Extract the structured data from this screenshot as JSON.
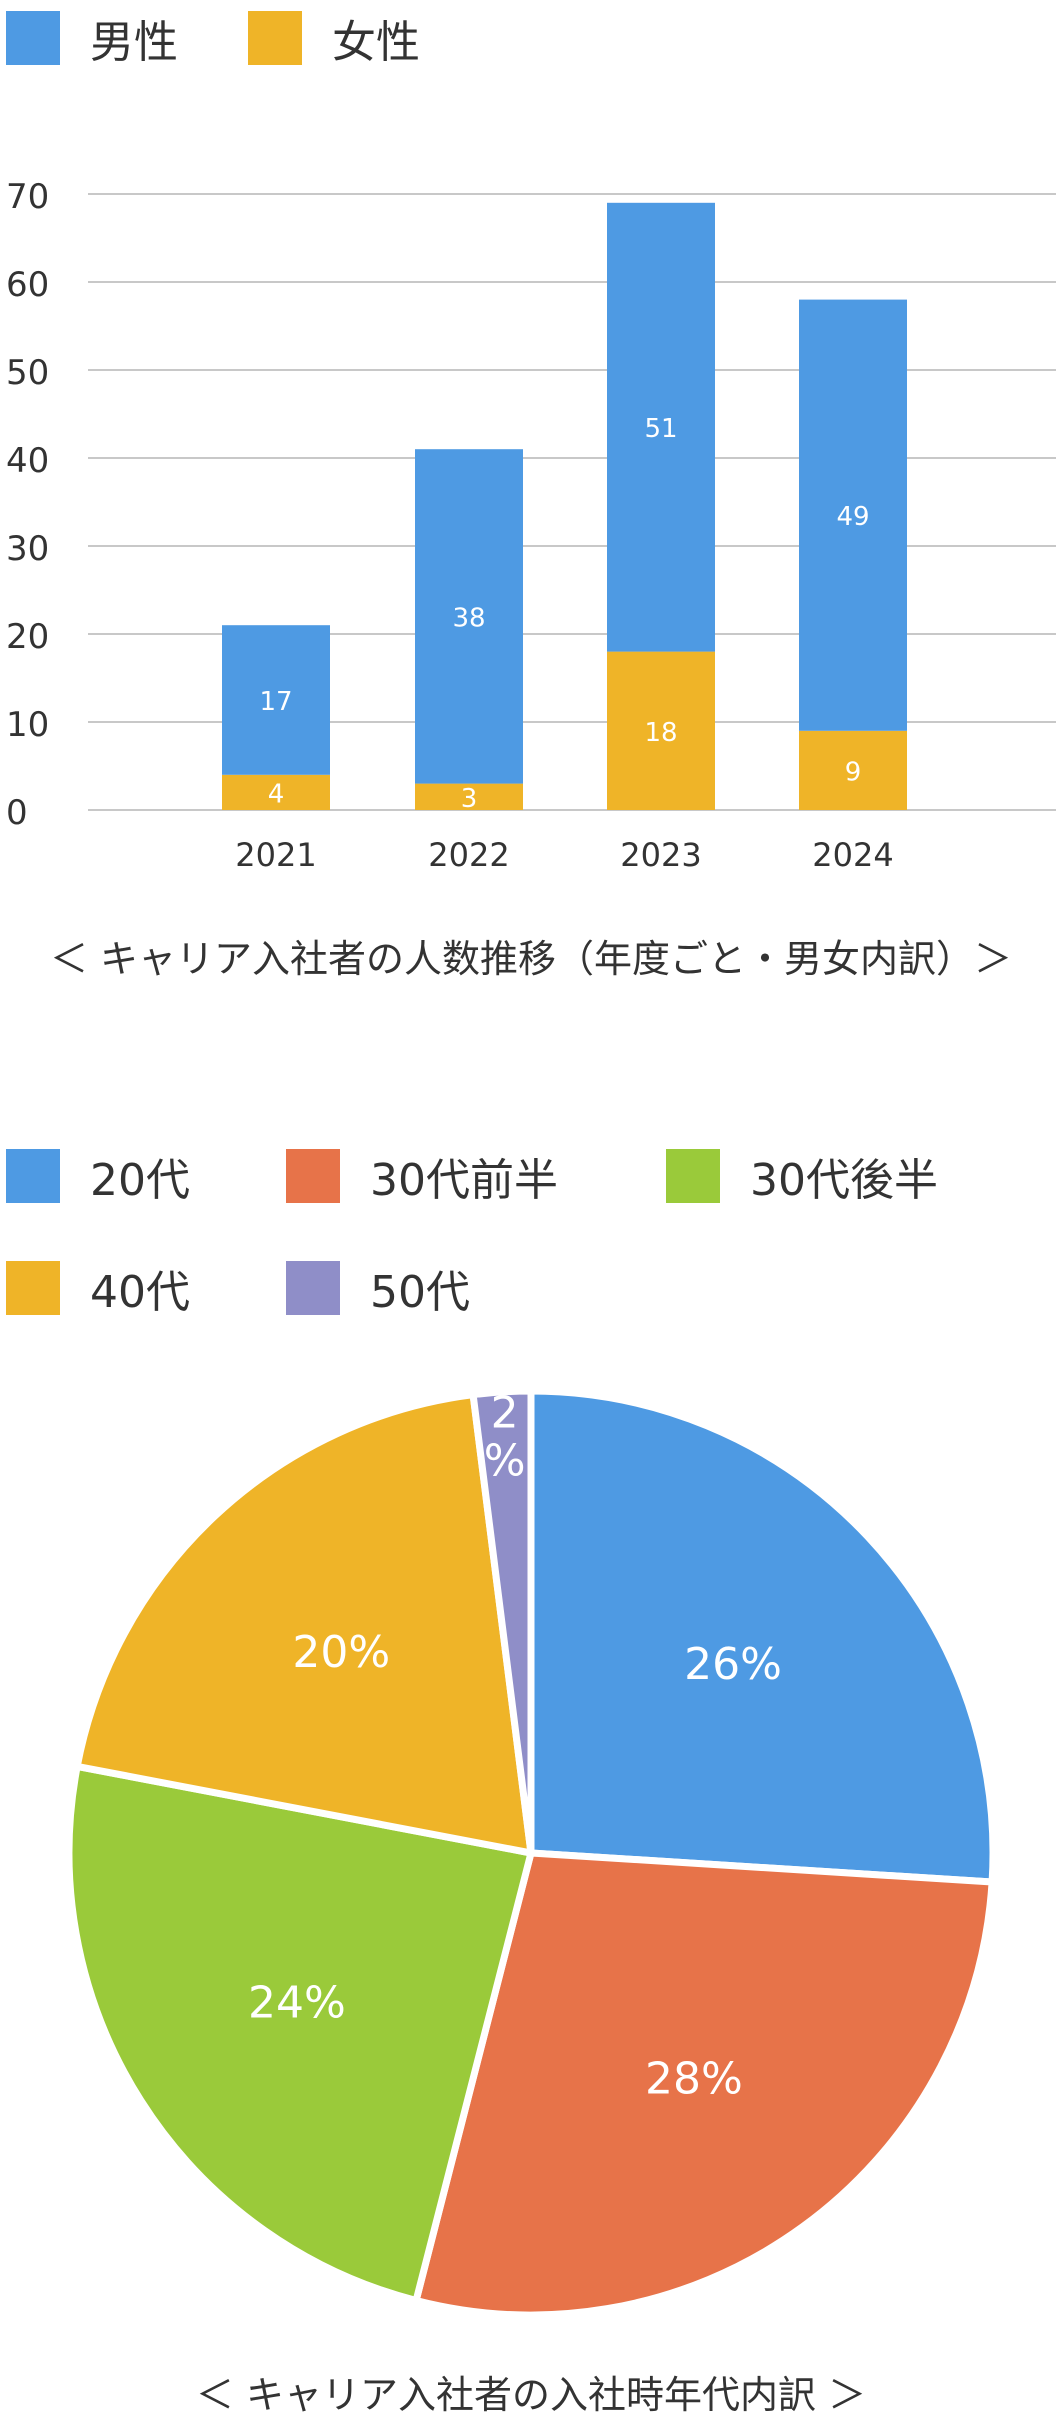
{
  "charts": [
    {
      "legend": [
        {
          "label": "男性",
          "color": "#4e9ae3"
        },
        {
          "label": "女性",
          "color": "#efb428"
        }
      ],
      "caption": "＜ キャリア入社者の人数推移（年度ごと・男女内訳）＞"
    },
    {
      "legend": [
        {
          "label": "20代",
          "color": "#4e9ae3"
        },
        {
          "label": "30代前半",
          "color": "#e77349"
        },
        {
          "label": "30代後半",
          "color": "#9aca3a"
        },
        {
          "label": "40代",
          "color": "#efb428"
        },
        {
          "label": "50代",
          "color": "#8f8ec8"
        }
      ],
      "caption": "＜ キャリア入社者の入社時年代内訳 ＞"
    }
  ],
  "chart_data": [
    {
      "type": "bar",
      "stacked": true,
      "title": "",
      "xlabel": "",
      "ylabel": "",
      "categories": [
        "2021",
        "2022",
        "2023",
        "2024"
      ],
      "ylim": [
        0,
        70
      ],
      "yticks": [
        0,
        10,
        20,
        30,
        40,
        50,
        60,
        70
      ],
      "grid": true,
      "legend_position": "top-left",
      "series": [
        {
          "name": "女性",
          "color": "#efb428",
          "values": [
            4,
            3,
            18,
            9
          ]
        },
        {
          "name": "男性",
          "color": "#4e9ae3",
          "values": [
            17,
            38,
            51,
            49
          ]
        }
      ]
    },
    {
      "type": "pie",
      "title": "",
      "legend_position": "top-left",
      "slices": [
        {
          "label": "20代",
          "value": 26,
          "display": "26%",
          "color": "#4e9ae3"
        },
        {
          "label": "30代前半",
          "value": 28,
          "display": "28%",
          "color": "#e77349"
        },
        {
          "label": "30代後半",
          "value": 24,
          "display": "24%",
          "color": "#9aca3a"
        },
        {
          "label": "40代",
          "value": 20,
          "display": "20%",
          "color": "#efb428"
        },
        {
          "label": "50代",
          "value": 2,
          "display": "2%",
          "color": "#8f8ec8"
        }
      ]
    }
  ]
}
